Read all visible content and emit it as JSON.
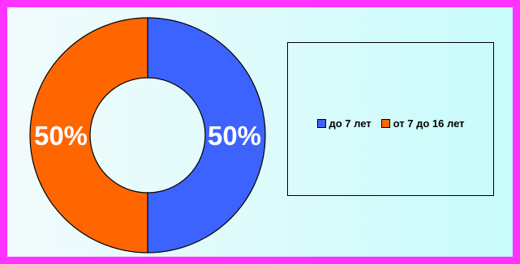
{
  "chart_data": {
    "type": "pie",
    "variant": "doughnut",
    "categories": [
      "до 7 лет",
      "от 7 до 16 лет"
    ],
    "values": [
      50,
      50
    ],
    "data_labels": [
      "50%",
      "50%"
    ],
    "colors": [
      "#3d63ff",
      "#ff6600"
    ],
    "legend_position": "right",
    "frame_color": "#ff33ff",
    "title": ""
  }
}
